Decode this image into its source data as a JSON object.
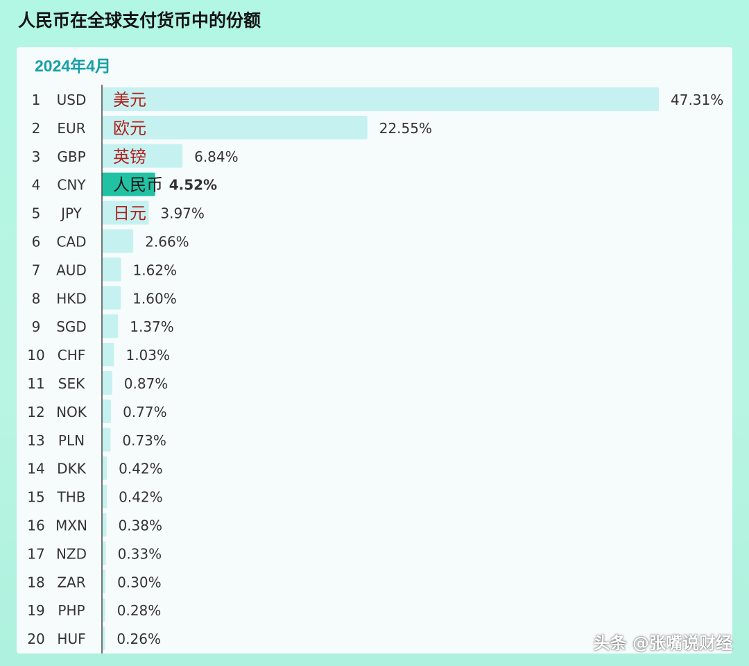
{
  "title": "人民币在全球支付货币中的份额",
  "watermark": "头条 @张嘴说财经",
  "colors": {
    "bar": "#c6f1f1",
    "highlight_bar": "#21c2a4",
    "chinese_label": "#b0211d",
    "axis": "#4a4a4a",
    "text": "#333333"
  },
  "chart_data": {
    "type": "bar",
    "orientation": "horizontal",
    "subtitle": "2024年4月",
    "value_unit": "%",
    "xlim": [
      0,
      47.31
    ],
    "rows": [
      {
        "rank": "1",
        "code": "USD",
        "cn": "美元",
        "value": 47.31,
        "label": "47.31%"
      },
      {
        "rank": "2",
        "code": "EUR",
        "cn": "欧元",
        "value": 22.55,
        "label": "22.55%"
      },
      {
        "rank": "3",
        "code": "GBP",
        "cn": "英镑",
        "value": 6.84,
        "label": "6.84%"
      },
      {
        "rank": "4",
        "code": "CNY",
        "cn": "人民币",
        "value": 4.52,
        "label": "4.52%",
        "highlight": true
      },
      {
        "rank": "5",
        "code": "JPY",
        "cn": "日元",
        "value": 3.97,
        "label": "3.97%"
      },
      {
        "rank": "6",
        "code": "CAD",
        "value": 2.66,
        "label": "2.66%"
      },
      {
        "rank": "7",
        "code": "AUD",
        "value": 1.62,
        "label": "1.62%"
      },
      {
        "rank": "8",
        "code": "HKD",
        "value": 1.6,
        "label": "1.60%"
      },
      {
        "rank": "9",
        "code": "SGD",
        "value": 1.37,
        "label": "1.37%"
      },
      {
        "rank": "10",
        "code": "CHF",
        "value": 1.03,
        "label": "1.03%"
      },
      {
        "rank": "11",
        "code": "SEK",
        "value": 0.87,
        "label": "0.87%"
      },
      {
        "rank": "12",
        "code": "NOK",
        "value": 0.77,
        "label": "0.77%"
      },
      {
        "rank": "13",
        "code": "PLN",
        "value": 0.73,
        "label": "0.73%"
      },
      {
        "rank": "14",
        "code": "DKK",
        "value": 0.42,
        "label": "0.42%"
      },
      {
        "rank": "15",
        "code": "THB",
        "value": 0.42,
        "label": "0.42%"
      },
      {
        "rank": "16",
        "code": "MXN",
        "value": 0.38,
        "label": "0.38%"
      },
      {
        "rank": "17",
        "code": "NZD",
        "value": 0.33,
        "label": "0.33%"
      },
      {
        "rank": "18",
        "code": "ZAR",
        "value": 0.3,
        "label": "0.30%"
      },
      {
        "rank": "19",
        "code": "PHP",
        "value": 0.28,
        "label": "0.28%"
      },
      {
        "rank": "20",
        "code": "HUF",
        "value": 0.26,
        "label": "0.26%"
      }
    ]
  }
}
